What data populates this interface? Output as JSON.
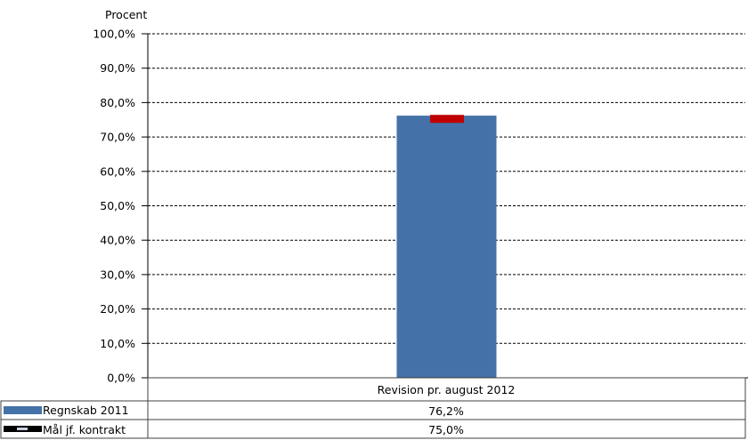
{
  "chart_data": {
    "type": "bar",
    "ylabel": "Procent",
    "categories": [
      "Revision pr. august 2012"
    ],
    "ylim": [
      0,
      100
    ],
    "yticks": [
      "0,0%",
      "10,0%",
      "20,0%",
      "30,0%",
      "40,0%",
      "50,0%",
      "60,0%",
      "70,0%",
      "80,0%",
      "90,0%",
      "100,0%"
    ],
    "grid": true,
    "series": [
      {
        "name": "Regnskab 2011",
        "values": [
          76.2
        ],
        "value_labels": [
          "76,2%"
        ],
        "color": "#4472a8",
        "kind": "bar"
      },
      {
        "name": "Mål jf. kontrakt",
        "values": [
          75.0
        ],
        "value_labels": [
          "75,0%"
        ],
        "color": "#c00000",
        "kind": "marker"
      }
    ],
    "legend": "data-table-bottom"
  }
}
